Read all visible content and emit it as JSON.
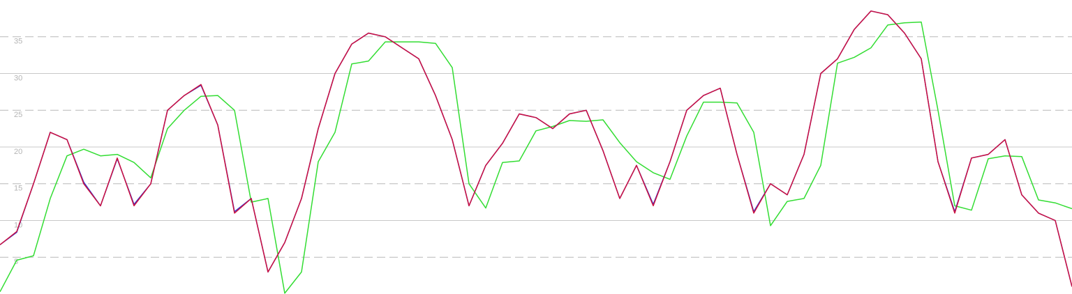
{
  "chart_data": {
    "type": "line",
    "ylim": [
      0,
      40
    ],
    "yticks": [
      5,
      10,
      15,
      20,
      25,
      30,
      35
    ],
    "grid": true,
    "series": [
      {
        "color": "#33dd33",
        "values": [
          0.3,
          4.6,
          5.2,
          13,
          18.8,
          19.7,
          18.8,
          19,
          17.9,
          15.8,
          22.5,
          25,
          26.9,
          27,
          25,
          12.5,
          13,
          0.1,
          3,
          18,
          22,
          31.3,
          31.7,
          34.3,
          34.3,
          34.3,
          34.1,
          30.8,
          15,
          11.7,
          17.9,
          18.1,
          22.2,
          22.8,
          23.6,
          23.5,
          23.7,
          20.6,
          18,
          16.5,
          15.6,
          21.5,
          26.1,
          26.1,
          26,
          22,
          9.3,
          12.6,
          13,
          17.5,
          31.4,
          32.2,
          33.5,
          36.6,
          36.9,
          37,
          25,
          12,
          11.4,
          18.4,
          18.8,
          18.7,
          12.8,
          12.4,
          11.6
        ]
      },
      {
        "color": "#3333cc",
        "values": [
          6.7,
          8.4,
          15,
          22,
          21,
          15.2,
          12,
          18.4,
          12.2,
          15,
          25,
          27,
          28.4,
          23,
          11.2,
          13,
          3,
          7,
          13,
          22.5,
          30,
          34,
          35.5,
          35,
          33.5,
          32,
          27,
          21,
          12,
          17.5,
          20.5,
          24.5,
          24,
          22.5,
          24.5,
          25,
          19.5,
          13,
          17.5,
          12.2,
          18,
          25,
          27,
          28,
          19,
          11.2,
          15,
          13.5,
          19,
          30,
          32,
          36,
          38.5,
          38,
          35.5,
          32,
          18,
          11.2,
          18.5,
          19,
          21,
          13.5,
          11,
          10,
          1
        ]
      },
      {
        "color": "#cc1040",
        "values": [
          6.7,
          8.5,
          15,
          22,
          21,
          15,
          12,
          18.5,
          12,
          15,
          25,
          27,
          28.5,
          23,
          11,
          13,
          3,
          7,
          13,
          22.5,
          30,
          34,
          35.5,
          35,
          33.5,
          32,
          27,
          21,
          12,
          17.5,
          20.5,
          24.5,
          24,
          22.5,
          24.5,
          25,
          19.5,
          13,
          17.5,
          12,
          18,
          25,
          27,
          28,
          19,
          11,
          15,
          13.5,
          19,
          30,
          32,
          36,
          38.5,
          38,
          35.5,
          32,
          18,
          11,
          18.5,
          19,
          21,
          13.5,
          11,
          10,
          1
        ]
      }
    ]
  }
}
